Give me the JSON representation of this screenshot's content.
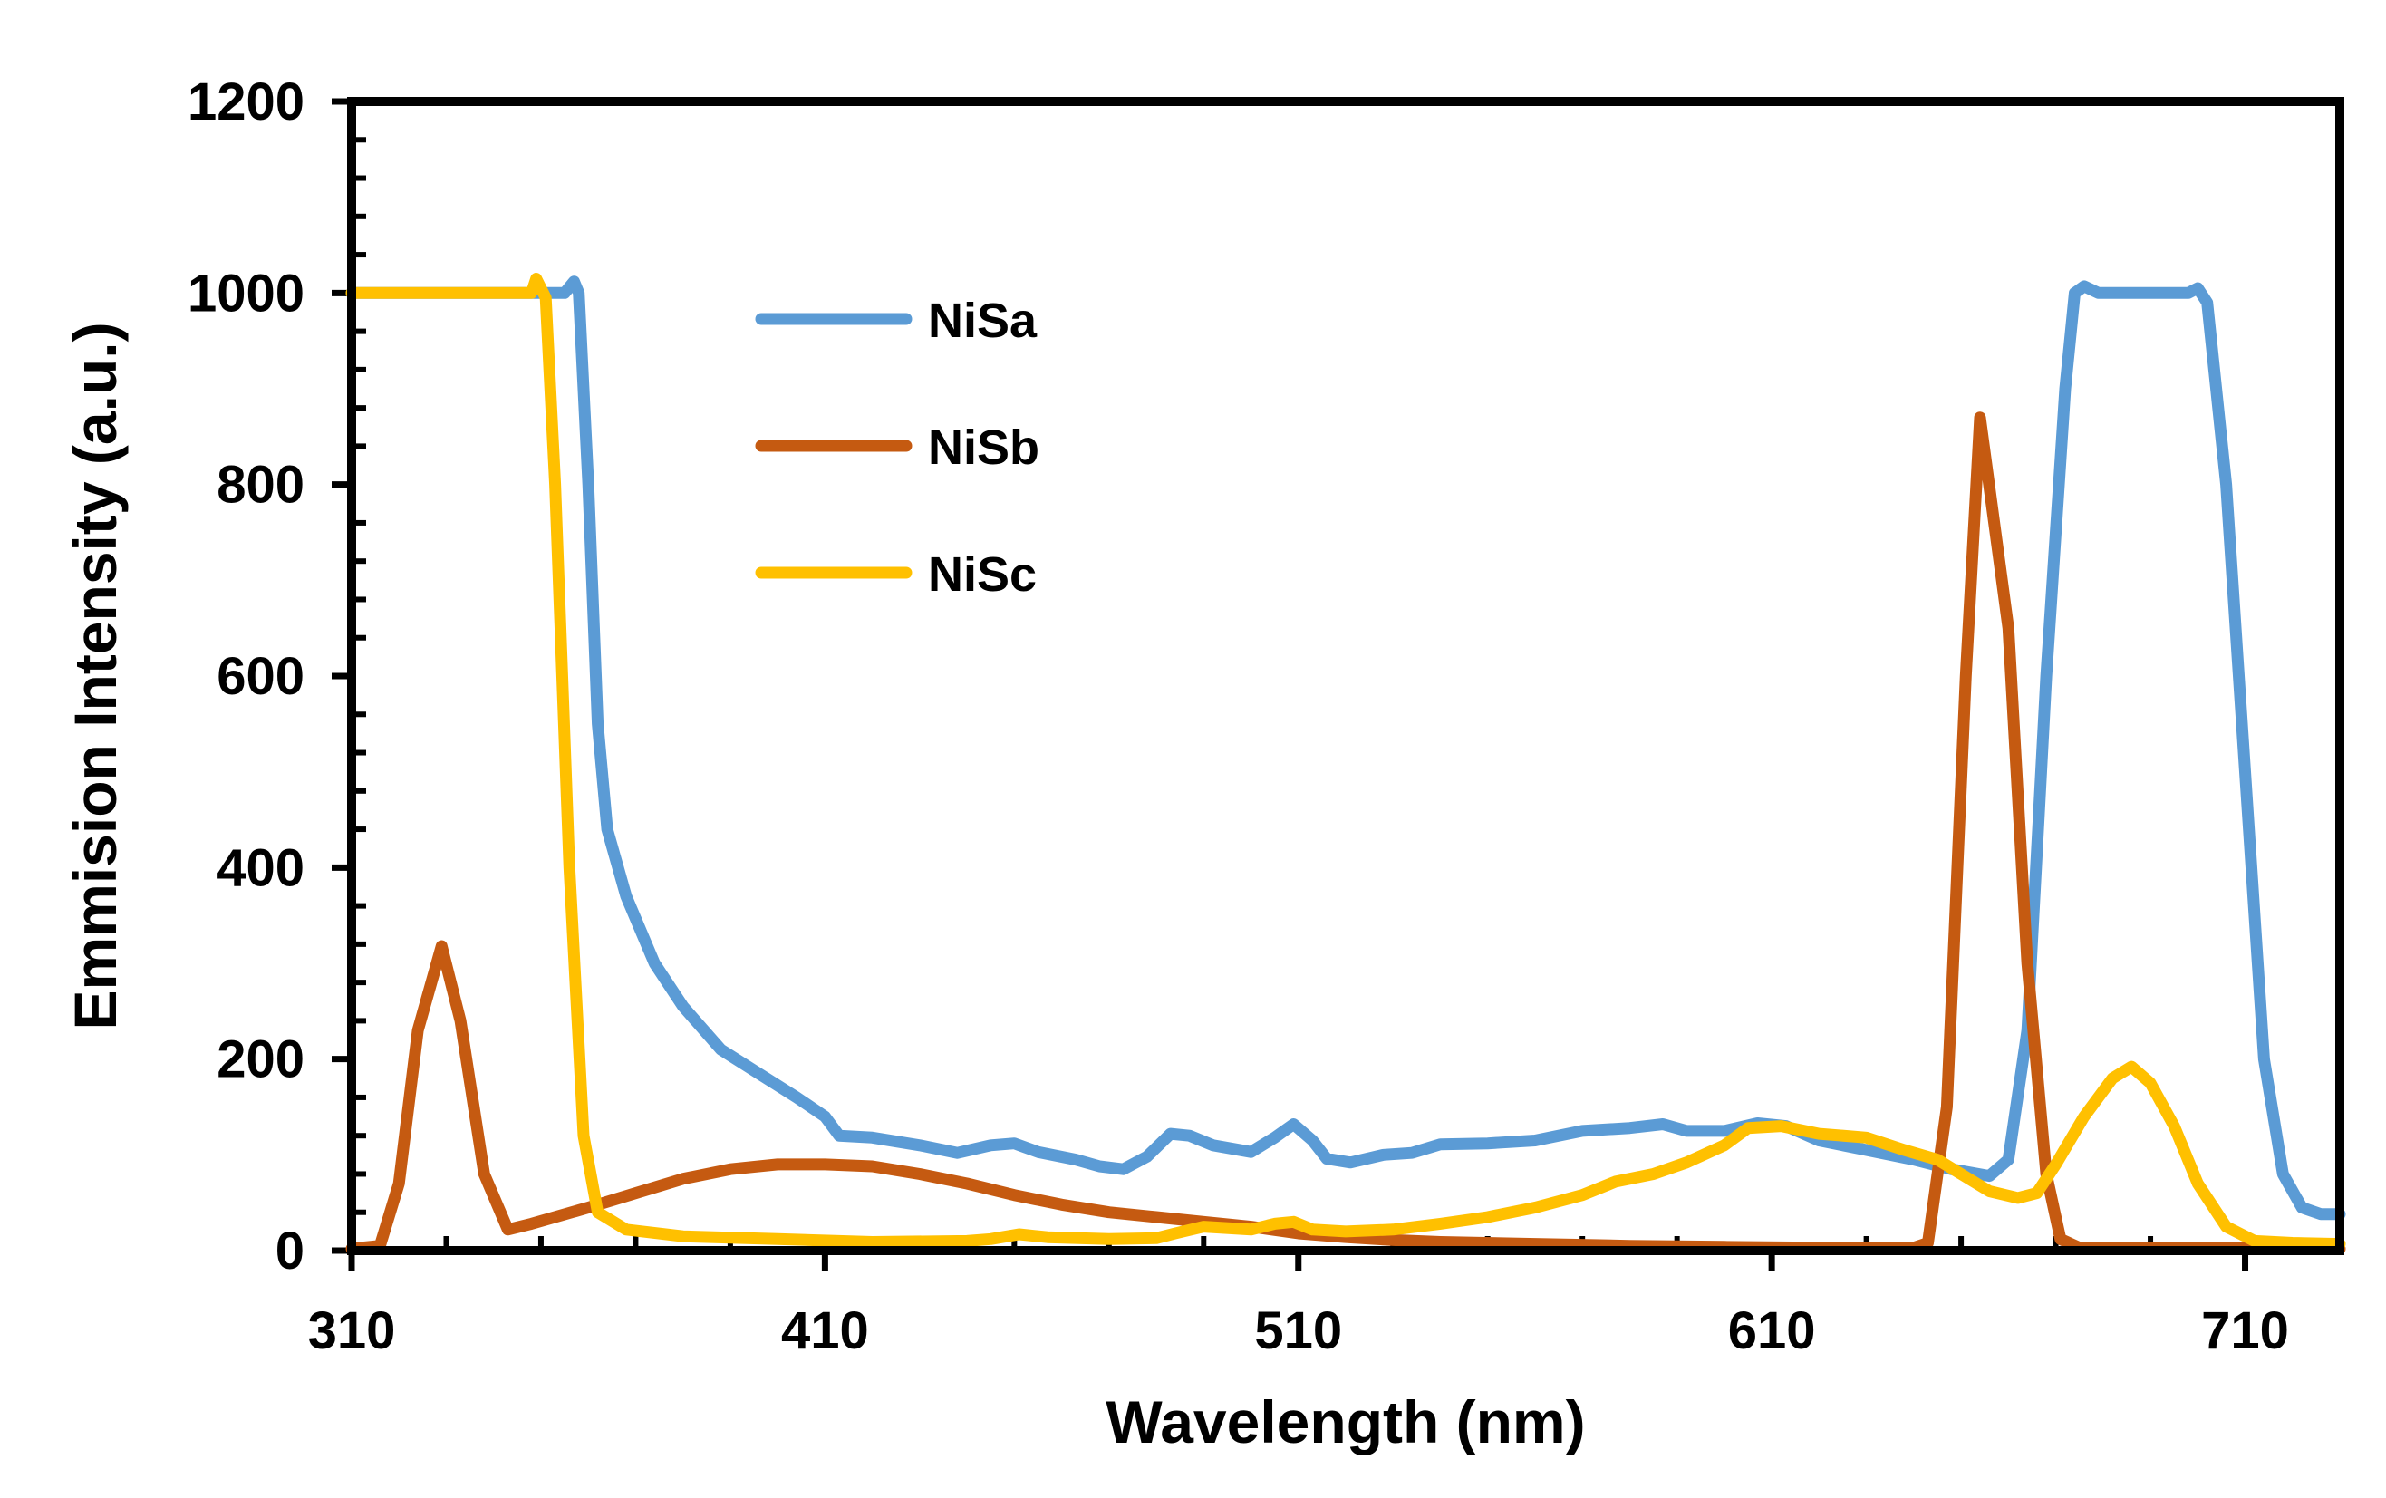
{
  "chart_data": {
    "type": "line",
    "title": "",
    "xlabel": "Wavelength (nm)",
    "ylabel": "Emmision Intensity (a.u.)",
    "xlim": [
      310,
      730
    ],
    "ylim": [
      0,
      1200
    ],
    "xticks": [
      310,
      410,
      510,
      610,
      710
    ],
    "xtick_labels": [
      "310",
      "410",
      "510",
      "610",
      "710"
    ],
    "yticks": [
      0,
      200,
      400,
      600,
      800,
      1000,
      1200
    ],
    "ytick_labels": [
      "0",
      "200",
      "400",
      "600",
      "800",
      "1000",
      "1200"
    ],
    "grid": false,
    "legend_position": "top-center",
    "series": [
      {
        "name": "NiSa",
        "color": "#5B9BD5",
        "points": [
          [
            310,
            1000
          ],
          [
            355,
            1000
          ],
          [
            357,
            1012
          ],
          [
            358,
            1000
          ],
          [
            360,
            800
          ],
          [
            362,
            550
          ],
          [
            364,
            440
          ],
          [
            368,
            370
          ],
          [
            374,
            300
          ],
          [
            380,
            255
          ],
          [
            388,
            210
          ],
          [
            396,
            185
          ],
          [
            404,
            160
          ],
          [
            410,
            140
          ],
          [
            413,
            120
          ],
          [
            420,
            118
          ],
          [
            430,
            110
          ],
          [
            438,
            102
          ],
          [
            445,
            110
          ],
          [
            450,
            112
          ],
          [
            455,
            103
          ],
          [
            463,
            95
          ],
          [
            468,
            88
          ],
          [
            473,
            85
          ],
          [
            478,
            98
          ],
          [
            483,
            122
          ],
          [
            487,
            120
          ],
          [
            492,
            110
          ],
          [
            500,
            103
          ],
          [
            505,
            118
          ],
          [
            509,
            132
          ],
          [
            513,
            115
          ],
          [
            516,
            96
          ],
          [
            521,
            92
          ],
          [
            528,
            100
          ],
          [
            534,
            102
          ],
          [
            540,
            111
          ],
          [
            550,
            112
          ],
          [
            560,
            115
          ],
          [
            570,
            125
          ],
          [
            580,
            128
          ],
          [
            587,
            132
          ],
          [
            592,
            125
          ],
          [
            600,
            125
          ],
          [
            607,
            133
          ],
          [
            613,
            130
          ],
          [
            620,
            115
          ],
          [
            630,
            105
          ],
          [
            640,
            95
          ],
          [
            648,
            85
          ],
          [
            656,
            78
          ],
          [
            660,
            95
          ],
          [
            664,
            230
          ],
          [
            668,
            600
          ],
          [
            672,
            900
          ],
          [
            674,
            1000
          ],
          [
            676,
            1007
          ],
          [
            679,
            1000
          ],
          [
            690,
            1000
          ],
          [
            698,
            1000
          ],
          [
            700,
            1005
          ],
          [
            702,
            990
          ],
          [
            706,
            800
          ],
          [
            710,
            500
          ],
          [
            714,
            200
          ],
          [
            718,
            80
          ],
          [
            722,
            45
          ],
          [
            726,
            38
          ],
          [
            730,
            38
          ]
        ]
      },
      {
        "name": "NiSb",
        "color": "#C55A11",
        "points": [
          [
            310,
            2
          ],
          [
            316,
            5
          ],
          [
            320,
            70
          ],
          [
            324,
            230
          ],
          [
            329,
            318
          ],
          [
            333,
            240
          ],
          [
            338,
            80
          ],
          [
            343,
            22
          ],
          [
            348,
            28
          ],
          [
            360,
            45
          ],
          [
            370,
            60
          ],
          [
            380,
            75
          ],
          [
            390,
            85
          ],
          [
            400,
            90
          ],
          [
            410,
            90
          ],
          [
            420,
            88
          ],
          [
            430,
            80
          ],
          [
            440,
            70
          ],
          [
            450,
            58
          ],
          [
            460,
            48
          ],
          [
            470,
            40
          ],
          [
            480,
            35
          ],
          [
            490,
            30
          ],
          [
            500,
            25
          ],
          [
            510,
            18
          ],
          [
            520,
            14
          ],
          [
            530,
            11
          ],
          [
            540,
            9
          ],
          [
            560,
            7
          ],
          [
            580,
            5
          ],
          [
            600,
            4
          ],
          [
            620,
            3
          ],
          [
            640,
            3
          ],
          [
            643,
            8
          ],
          [
            647,
            150
          ],
          [
            651,
            600
          ],
          [
            654,
            870
          ],
          [
            660,
            650
          ],
          [
            664,
            300
          ],
          [
            668,
            80
          ],
          [
            671,
            12
          ],
          [
            675,
            3
          ],
          [
            700,
            3
          ],
          [
            730,
            2
          ]
        ]
      },
      {
        "name": "NiSc",
        "color": "#FFC000",
        "points": [
          [
            310,
            1000
          ],
          [
            348,
            1000
          ],
          [
            349,
            1015
          ],
          [
            351,
            995
          ],
          [
            353,
            800
          ],
          [
            356,
            400
          ],
          [
            359,
            120
          ],
          [
            362,
            40
          ],
          [
            368,
            22
          ],
          [
            380,
            15
          ],
          [
            400,
            12
          ],
          [
            420,
            9
          ],
          [
            440,
            10
          ],
          [
            445,
            12
          ],
          [
            451,
            17
          ],
          [
            457,
            14
          ],
          [
            470,
            12
          ],
          [
            480,
            13
          ],
          [
            484,
            18
          ],
          [
            490,
            25
          ],
          [
            500,
            22
          ],
          [
            505,
            28
          ],
          [
            509,
            30
          ],
          [
            513,
            22
          ],
          [
            520,
            20
          ],
          [
            530,
            22
          ],
          [
            540,
            28
          ],
          [
            550,
            35
          ],
          [
            560,
            45
          ],
          [
            570,
            58
          ],
          [
            577,
            72
          ],
          [
            585,
            80
          ],
          [
            592,
            92
          ],
          [
            600,
            110
          ],
          [
            605,
            128
          ],
          [
            612,
            130
          ],
          [
            620,
            122
          ],
          [
            630,
            118
          ],
          [
            638,
            105
          ],
          [
            645,
            95
          ],
          [
            650,
            80
          ],
          [
            656,
            62
          ],
          [
            662,
            55
          ],
          [
            666,
            60
          ],
          [
            670,
            90
          ],
          [
            676,
            140
          ],
          [
            682,
            180
          ],
          [
            686,
            192
          ],
          [
            690,
            175
          ],
          [
            695,
            130
          ],
          [
            700,
            70
          ],
          [
            706,
            25
          ],
          [
            712,
            10
          ],
          [
            720,
            8
          ],
          [
            730,
            7
          ]
        ]
      }
    ]
  }
}
